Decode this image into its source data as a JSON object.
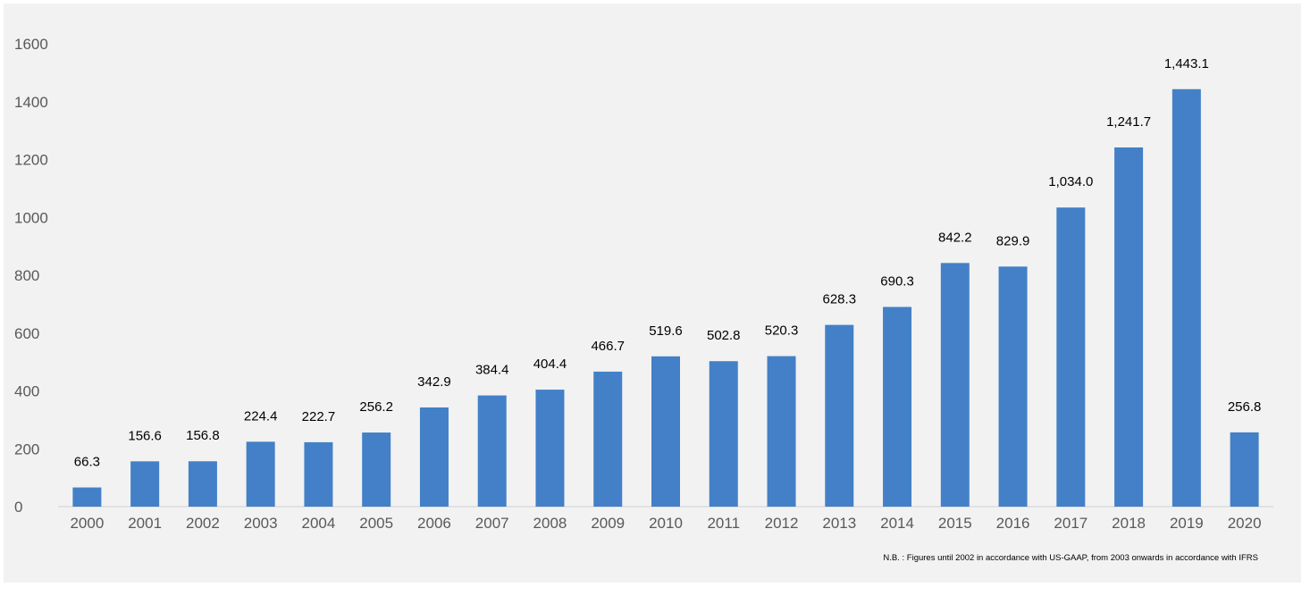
{
  "chart_data": {
    "type": "bar",
    "categories": [
      "2000",
      "2001",
      "2002",
      "2003",
      "2004",
      "2005",
      "2006",
      "2007",
      "2008",
      "2009",
      "2010",
      "2011",
      "2012",
      "2013",
      "2014",
      "2015",
      "2016",
      "2017",
      "2018",
      "2019",
      "2020"
    ],
    "values": [
      66.3,
      156.6,
      156.8,
      224.4,
      222.7,
      256.2,
      342.9,
      384.4,
      404.4,
      466.7,
      519.6,
      502.8,
      520.3,
      628.3,
      690.3,
      842.2,
      829.9,
      1034.0,
      1241.7,
      1443.1,
      256.8
    ],
    "data_labels": [
      "66.3",
      "156.6",
      "156.8",
      "224.4",
      "222.7",
      "256.2",
      "342.9",
      "384.4",
      "404.4",
      "466.7",
      "519.6",
      "502.8",
      "520.3",
      "628.3",
      "690.3",
      "842.2",
      "829.9",
      "1,034.0",
      "1,241.7",
      "1,443.1",
      "256.8"
    ],
    "y_ticks": [
      "0",
      "200",
      "400",
      "600",
      "800",
      "1000",
      "1200",
      "1400",
      "1600"
    ],
    "ylim": [
      0,
      1600
    ],
    "grid": false,
    "bar_color": "#4380c7",
    "note": "N.B. : Figures until 2002 in accordance with US-GAAP, from 2003 onwards in accordance with IFRS"
  }
}
